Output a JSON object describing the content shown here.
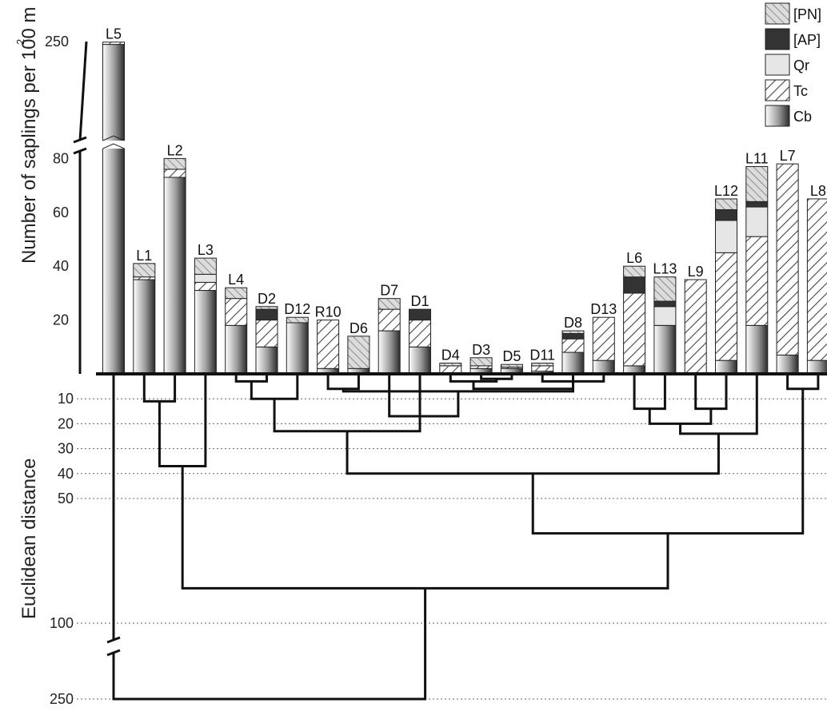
{
  "chart_data": {
    "type": "bar",
    "ylabel": "Number of saplings per 100 m",
    "ylabel_superscript": "2",
    "yticks": [
      20,
      40,
      60,
      80,
      250
    ],
    "y_axis_break": true,
    "stack_order": [
      "Cb",
      "Tc",
      "Qr",
      "[AP]",
      "[PN]"
    ],
    "legend": {
      "placement": "top-right",
      "entries": [
        {
          "key": "[PN]",
          "label": "[PN]",
          "pattern": "fine-hatch"
        },
        {
          "key": "[AP]",
          "label": "[AP]",
          "pattern": "solid-dark"
        },
        {
          "key": "Qr",
          "label": "Qr",
          "pattern": "light"
        },
        {
          "key": "Tc",
          "label": "Tc",
          "pattern": "hatch"
        },
        {
          "key": "Cb",
          "label": "Cb",
          "pattern": "gradient"
        }
      ]
    },
    "colors": {
      "ap": "#333333",
      "qr": "#e6e6e6",
      "pn_bg": "#dddddd",
      "hatch": "#444444",
      "axis": "#111111",
      "grid": "#666666"
    },
    "categories": [
      "L5",
      "L1",
      "L2",
      "L3",
      "L4",
      "D2",
      "D12",
      "R10",
      "D6",
      "D7",
      "D1",
      "D4",
      "D3",
      "D5",
      "D11",
      "D8",
      "D13",
      "L6",
      "L13",
      "L9",
      "L12",
      "L11",
      "L7",
      "L8"
    ],
    "series": [
      {
        "key": "Cb",
        "values": [
          245,
          35,
          73,
          31,
          18,
          10,
          19,
          2,
          2,
          16,
          10,
          0,
          2,
          2,
          1,
          8,
          5,
          3,
          18,
          0,
          5,
          18,
          7,
          5
        ]
      },
      {
        "key": "Tc",
        "values": [
          4,
          1,
          3,
          3,
          10,
          10,
          0,
          18,
          0,
          8,
          10,
          3,
          1,
          0.5,
          2,
          5,
          16,
          27,
          0,
          35,
          40,
          33,
          71,
          60
        ]
      },
      {
        "key": "Qr",
        "values": [
          0,
          0,
          0,
          3,
          0,
          0,
          0,
          0,
          0,
          0,
          0,
          0,
          0,
          0,
          0,
          0,
          0,
          0,
          7,
          0,
          12,
          11,
          0,
          0
        ]
      },
      {
        "key": "[AP]",
        "values": [
          0,
          0,
          0,
          0,
          0,
          4,
          0,
          0,
          0,
          0,
          4,
          0,
          0,
          0,
          0,
          2,
          0,
          6,
          2,
          0,
          4,
          2,
          0,
          0
        ]
      },
      {
        "key": "[PN]",
        "values": [
          0,
          5,
          4,
          6,
          4,
          1,
          2,
          0,
          12,
          4,
          0,
          1,
          3,
          1,
          1,
          1,
          0,
          4,
          9,
          0,
          4,
          13,
          0,
          0
        ]
      }
    ],
    "dendrogram": {
      "ylabel": "Euclidean distance",
      "yticks": [
        10,
        20,
        30,
        40,
        50,
        100,
        250
      ],
      "axis_break": true,
      "grid": "dotted",
      "merges": [
        {
          "a": "L1",
          "b": "L2",
          "distance": 11
        },
        {
          "a": "D3",
          "b": "D5",
          "distance": 2
        },
        {
          "a": "D4",
          "b": "m2",
          "distance": 3
        },
        {
          "a": "D11",
          "b": "D13",
          "distance": 3
        },
        {
          "a": "R10",
          "b": "D6",
          "distance": 6
        },
        {
          "a": "m3",
          "b": "m4",
          "distance": 6
        },
        {
          "a": "m5",
          "b": "D8",
          "distance": 7
        },
        {
          "a": "m7",
          "b": "D7",
          "distance": 17
        },
        {
          "a": "L4",
          "b": "D2",
          "distance": 3
        },
        {
          "a": "m9",
          "b": "D12",
          "distance": 10
        },
        {
          "a": "m10",
          "b": "D1",
          "distance": 23
        },
        {
          "a": "L3",
          "b": "m1",
          "distance": 37
        },
        {
          "a": "L6",
          "b": "L13",
          "distance": 14
        },
        {
          "a": "L9",
          "b": "L12",
          "distance": 14
        },
        {
          "a": "m13",
          "b": "m14",
          "distance": 20
        },
        {
          "a": "m15",
          "b": "L11",
          "distance": 24
        },
        {
          "a": "m11",
          "b": "m16",
          "distance": 40
        },
        {
          "a": "L7",
          "b": "L8",
          "distance": 6
        },
        {
          "a": "m17",
          "b": "m18",
          "distance": 64
        },
        {
          "a": "m12",
          "b": "m19",
          "distance": 86
        },
        {
          "a": "L5",
          "b": "m20",
          "distance": 250
        }
      ]
    }
  }
}
